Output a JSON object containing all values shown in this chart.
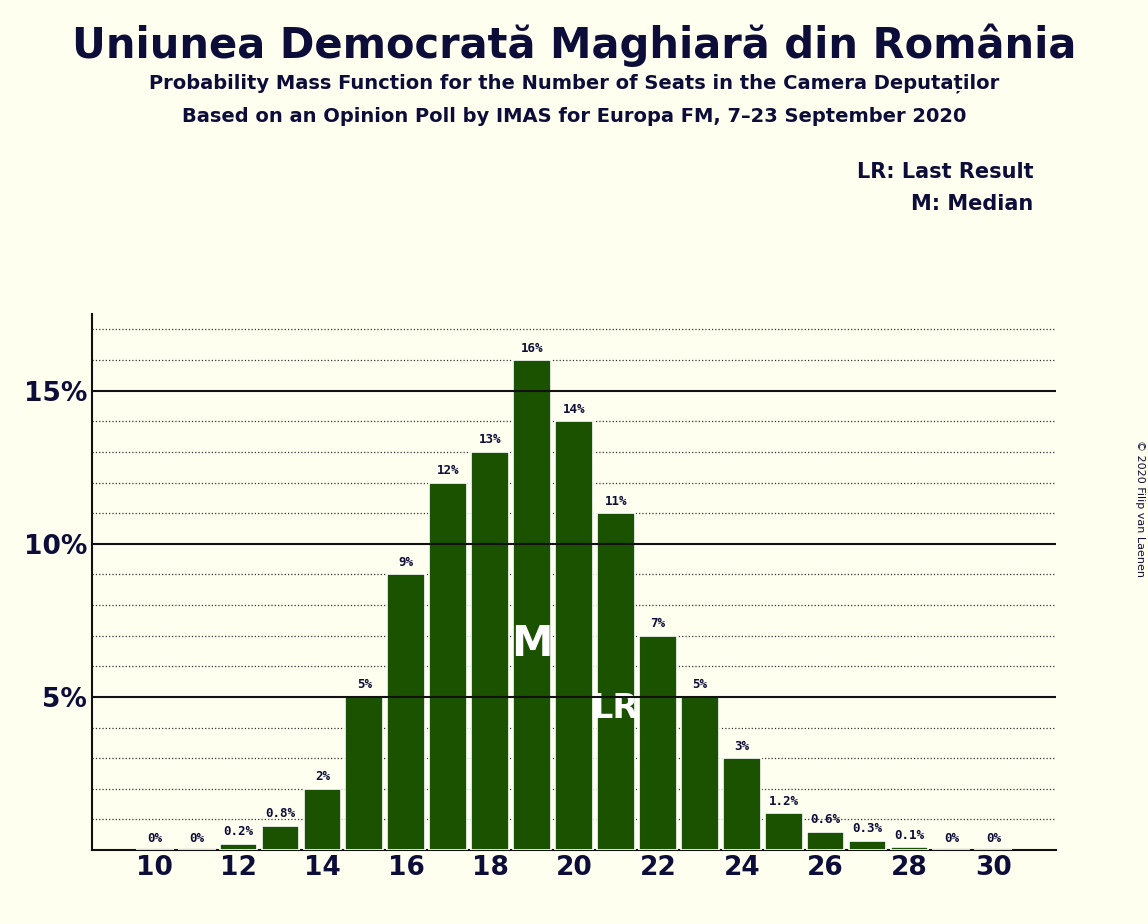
{
  "title": "Uniunea Democrată Maghiară din România",
  "subtitle1": "Probability Mass Function for the Number of Seats in the Camera Deputaților",
  "subtitle2": "Based on an Opinion Poll by IMAS for Europa FM, 7–23 September 2020",
  "copyright": "© 2020 Filip van Laenen",
  "seats": [
    10,
    11,
    12,
    13,
    14,
    15,
    16,
    17,
    18,
    19,
    20,
    21,
    22,
    23,
    24,
    25,
    26,
    27,
    28,
    29,
    30
  ],
  "probabilities": [
    0.0,
    0.0,
    0.2,
    0.8,
    2.0,
    5.0,
    9.0,
    12.0,
    13.0,
    16.0,
    14.0,
    11.0,
    7.0,
    5.0,
    3.0,
    1.2,
    0.6,
    0.3,
    0.1,
    0.0,
    0.0
  ],
  "bar_color": "#1a5200",
  "background_color": "#fffff0",
  "text_color": "#0d0d3a",
  "median_seat": 19,
  "lr_seat": 21,
  "yticks": [
    5,
    10,
    15
  ],
  "xticks": [
    10,
    12,
    14,
    16,
    18,
    20,
    22,
    24,
    26,
    28,
    30
  ],
  "ylim": [
    0,
    17.5
  ],
  "legend_lr": "LR: Last Result",
  "legend_m": "M: Median"
}
